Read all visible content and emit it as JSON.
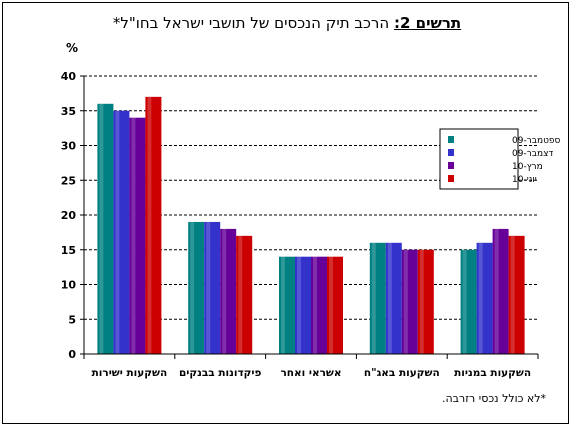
{
  "title_prefix": "תרשים 2:",
  "title_main": " הרכב תיק הנכסים של תושבי ישראל בחו\"ל*",
  "footnote": "*לא כולל נכסי רזרבה.",
  "colors": {
    "series": [
      "#008080",
      "#3333CC",
      "#660099",
      "#CC0000"
    ]
  },
  "chart_data": {
    "type": "bar",
    "ylabel": "%",
    "ylim": [
      0,
      40
    ],
    "yticks": [
      0,
      5,
      10,
      15,
      20,
      25,
      30,
      35,
      40
    ],
    "grid": "horizontal-dashed",
    "legend_position": "right",
    "categories": [
      "השקעות ישירות",
      "פיקדונות בבנקים",
      "אשראי ואחר",
      "השקעות באג\"ח",
      "השקעות במניות"
    ],
    "series": [
      {
        "name": "ספטמבר-09",
        "values": [
          36,
          19,
          14,
          16,
          15
        ]
      },
      {
        "name": "דצמבר-09",
        "values": [
          35,
          19,
          14,
          16,
          16
        ]
      },
      {
        "name": "מרץ-10",
        "values": [
          34,
          18,
          14,
          15,
          18
        ]
      },
      {
        "name": "יוני-10",
        "values": [
          37,
          17,
          14,
          15,
          17
        ]
      }
    ]
  }
}
